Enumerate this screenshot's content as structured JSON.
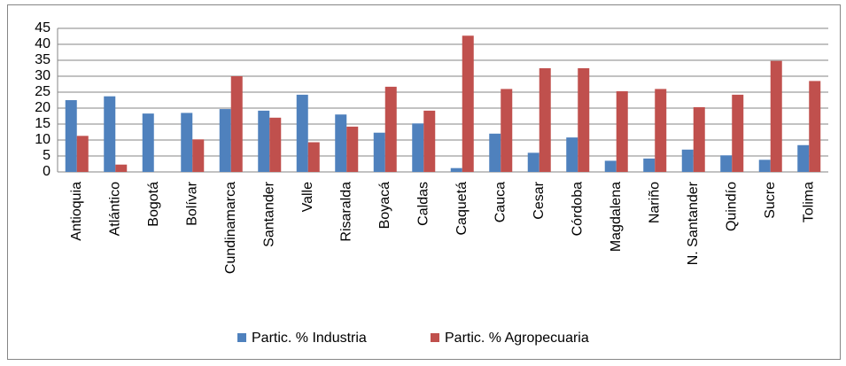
{
  "chart_data": {
    "type": "bar",
    "categories": [
      "Antioquia",
      "Atlántico",
      "Bogotá",
      "Bolívar",
      "Cundinamarca",
      "Santander",
      "Valle",
      "Risaralda",
      "Boyacá",
      "Caldas",
      "Caquetá",
      "Cauca",
      "Cesar",
      "Córdoba",
      "Magdalena",
      "Nariño",
      "N. Santander",
      "Quindío",
      "Sucre",
      "Tolima"
    ],
    "series": [
      {
        "name": "Partic. % Industria",
        "color": "#4f81bd",
        "values": [
          22.5,
          23.7,
          18.3,
          18.5,
          19.7,
          19.2,
          24.2,
          18,
          12.3,
          15.2,
          1.2,
          12,
          6,
          10.8,
          3.5,
          4.2,
          7,
          5.2,
          3.8,
          8.4
        ]
      },
      {
        "name": "Partic. % Agropecuaria",
        "color": "#c0504d",
        "values": [
          11.3,
          2.3,
          0,
          10.2,
          30,
          17,
          9.3,
          14.2,
          26.7,
          19.2,
          42.7,
          26,
          32.5,
          32.5,
          25.3,
          26,
          20.3,
          24.2,
          34.8,
          28.5
        ]
      }
    ],
    "ylim": [
      0,
      45
    ],
    "yticks": [
      0,
      5,
      10,
      15,
      20,
      25,
      30,
      35,
      40,
      45
    ],
    "grid": true,
    "legend": "bottom"
  }
}
